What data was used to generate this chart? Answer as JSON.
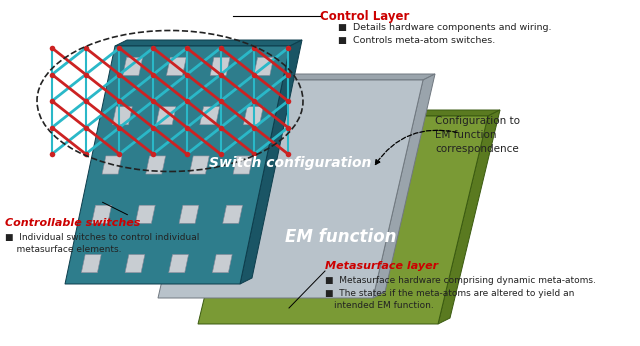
{
  "bg_color": "#ffffff",
  "teal_face": "#2e7d8c",
  "teal_top": "#1e6070",
  "teal_side": "#1a5565",
  "teal_edge": "#0d3d4c",
  "gray_face": "#b8c2ca",
  "gray_top": "#9aa4ac",
  "gray_side": "#9aa4ac",
  "gray_edge": "#707880",
  "green_face": "#7a9a35",
  "green_top": "#5a7a20",
  "green_side": "#5a7a20",
  "green_edge": "#3a5a10",
  "switch_sq_face": "#c8cdd2",
  "switch_sq_edge": "#888898",
  "lattice_teal": "#2ab8c8",
  "lattice_red": "#cc2222",
  "dot_red": "#cc2222",
  "ellipse_color": "#222222",
  "control_label": "Control Layer",
  "switches_label": "Controllable switches",
  "metasurface_label": "Metasurface layer",
  "switch_config_label": "Switch configuration",
  "em_label": "EM function",
  "control_bullet1": "Details hardware components and wiring.",
  "control_bullet2": "Controls meta-atom switches.",
  "switches_bullet1": "Individual switches to control individual",
  "switches_bullet2": "metasurface elements.",
  "meta_bullet1": "Metasurface hardware comprising dynamic meta-atoms.",
  "meta_bullet2": "The states if the meta-atoms are altered to yield an",
  "meta_bullet3": "intended EM function.",
  "config_text": "Configuration to\nEM function\ncorrespondence",
  "label_color_red": "#cc0000",
  "text_color": "#222222"
}
